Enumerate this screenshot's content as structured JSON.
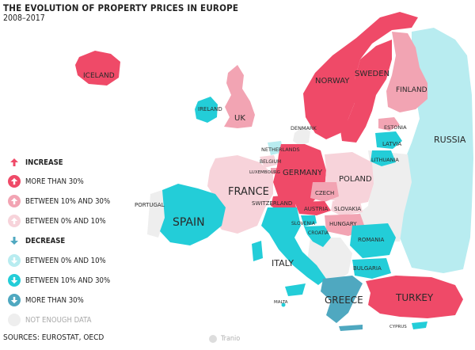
{
  "title": "THE EVOLUTION OF PROPERTY PRICES IN EUROPE",
  "subtitle": "2008–2017",
  "colors": {
    "inc_strong": "#ef4a68",
    "inc_mid": "#f2a4b3",
    "inc_weak": "#f7d3da",
    "dec_weak": "#b8ecf0",
    "dec_mid": "#23cdd8",
    "dec_strong": "#4fa8c0",
    "no_data": "#eeeeee",
    "inc_arrow": "#ef4a68",
    "dec_arrow": "#4fa8c0"
  },
  "legend": {
    "increase_header": "INCREASE",
    "inc_more30": "MORE THAN 30%",
    "inc_10_30": "BETWEEN 10% AND 30%",
    "inc_0_10": "BETWEEN 0% AND 10%",
    "decrease_header": "DECREASE",
    "dec_0_10": "BETWEEN 0% AND 10%",
    "dec_10_30": "BETWEEN 10% AND 30%",
    "dec_more30": "MORE THAN 30%",
    "no_data": "NOT ENOUGH DATA"
  },
  "countries": {
    "iceland": "ICELAND",
    "norway": "NORWAY",
    "sweden": "SWEDEN",
    "finland": "FINLAND",
    "russia": "RUSSIA",
    "ireland": "IRELAND",
    "uk": "UK",
    "denmark": "DENMARK",
    "estonia": "ESTONIA",
    "latvia": "LATVIA",
    "lithuania": "LITHUANIA",
    "netherlands": "NETHERLANDS",
    "belgium": "BELGIUM",
    "luxembourg": "LUXEMBOURG",
    "germany": "GERMANY",
    "poland": "POLAND",
    "france": "FRANCE",
    "czech": "CZECH",
    "switzerland": "SWITZERLAND",
    "austria": "AUSTRIA",
    "slovakia": "SLOVAKIA",
    "hungary": "HUNGARY",
    "slovenia": "SLOVENIA",
    "croatia": "CROATIA",
    "portugal": "PORTUGAL",
    "spain": "SPAIN",
    "italy": "ITALY",
    "romania": "ROMANIA",
    "bulgaria": "BULGARIA",
    "greece": "GREECE",
    "turkey": "TURKEY",
    "malta": "MALTA",
    "cyprus": "CYPRUS"
  },
  "sources": "SOURCES: EUROSTAT, OECD",
  "brand": "Tranio"
}
